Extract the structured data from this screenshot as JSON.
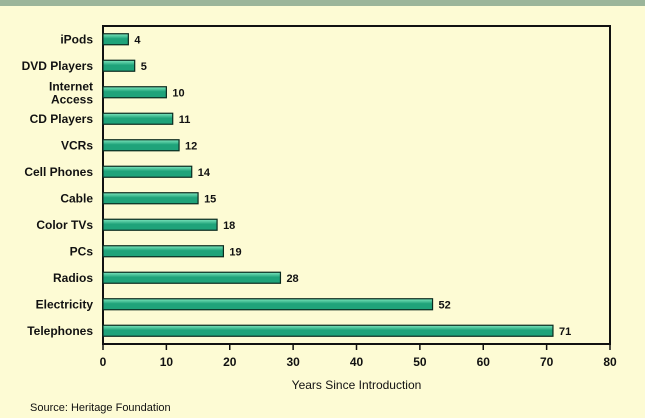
{
  "chart_data": {
    "type": "bar",
    "orientation": "horizontal",
    "categories": [
      "iPods",
      "DVD Players",
      "Internet Access",
      "CD Players",
      "VCRs",
      "Cell Phones",
      "Cable",
      "Color TVs",
      "PCs",
      "Radios",
      "Electricity",
      "Telephones"
    ],
    "values": [
      4,
      5,
      10,
      11,
      12,
      14,
      15,
      18,
      19,
      28,
      52,
      71
    ],
    "xlabel": "Years Since Introduction",
    "ylabel": "",
    "xlim": [
      0,
      80
    ],
    "xticks": [
      0,
      10,
      20,
      30,
      40,
      50,
      60,
      70,
      80
    ],
    "grid": false,
    "legend": "none"
  },
  "colors": {
    "background": "#fdfbd4",
    "bar_fill_dark": "#1fa37a",
    "bar_fill_light": "#7fe8bf",
    "bar_stroke": "#0a2a1e",
    "frame": "#111111"
  },
  "source": "Source: Heritage Foundation"
}
